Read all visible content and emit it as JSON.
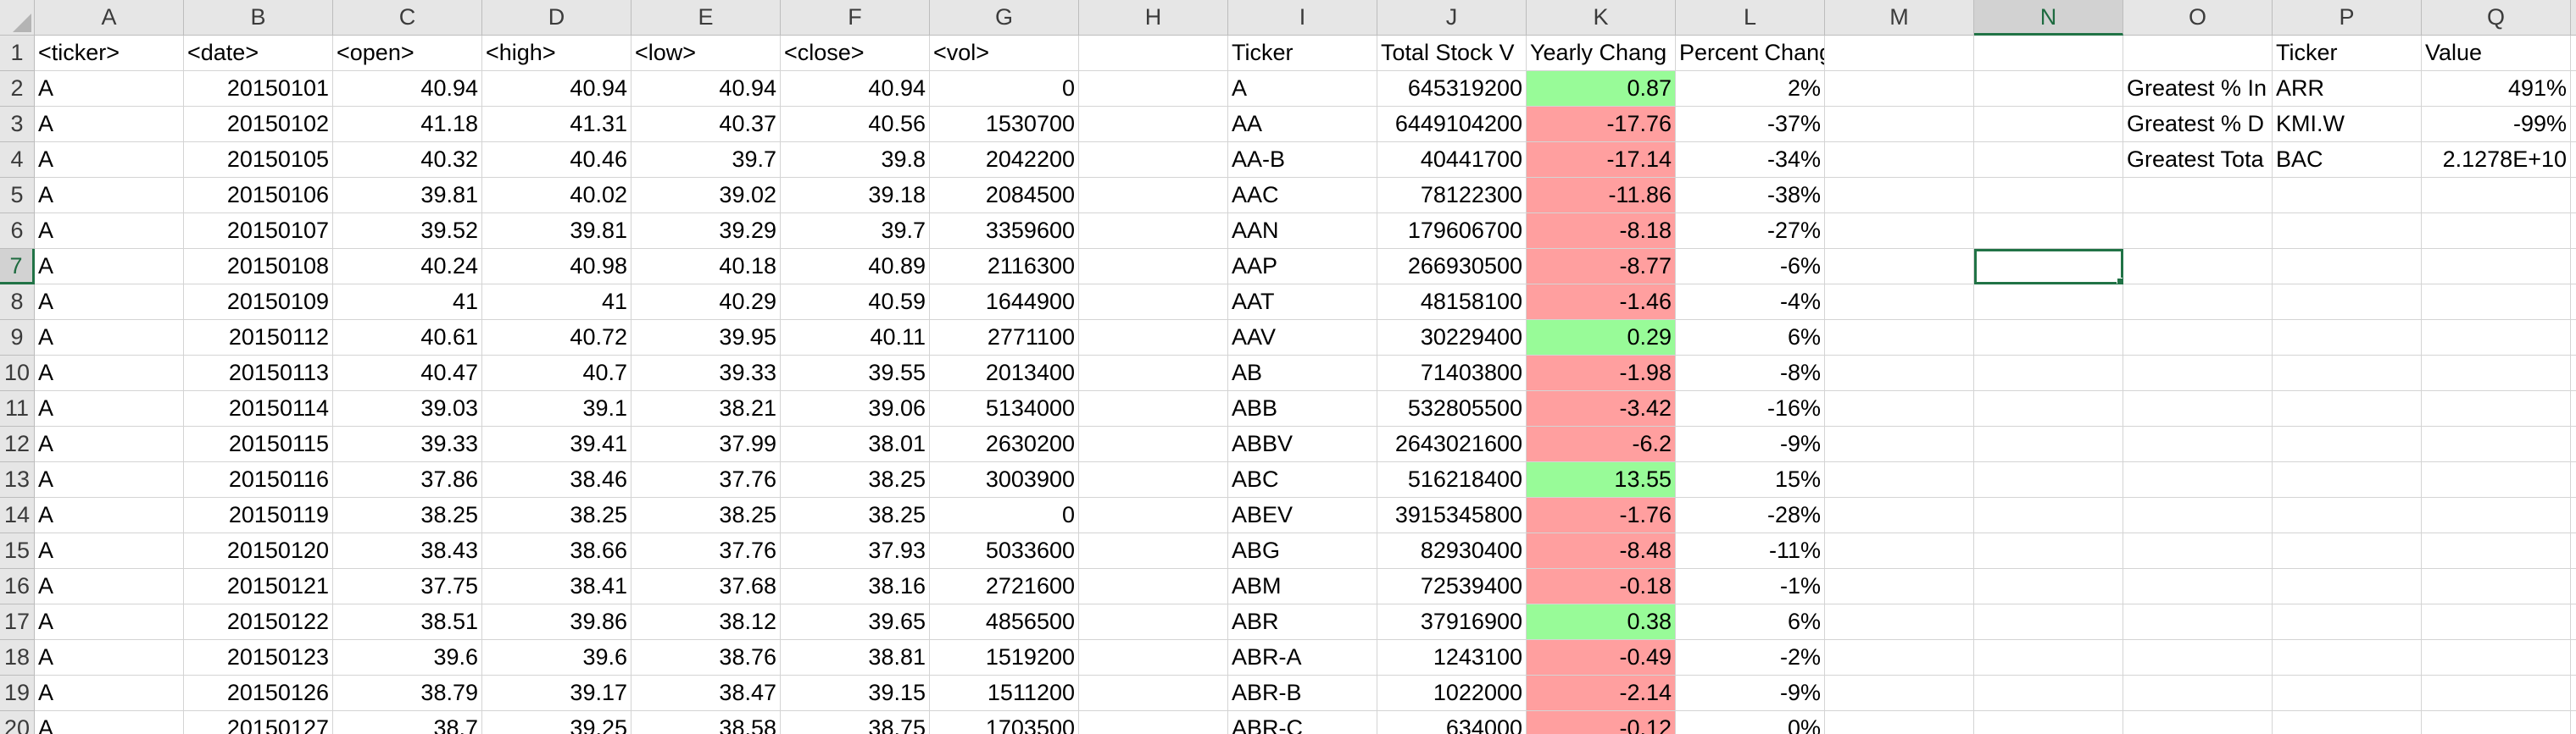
{
  "columns": [
    "A",
    "B",
    "C",
    "D",
    "E",
    "F",
    "G",
    "H",
    "I",
    "J",
    "K",
    "L",
    "M",
    "N",
    "O",
    "P",
    "Q"
  ],
  "selected_column": "N",
  "selected_row": "7",
  "rows": [
    {
      "n": "1",
      "A": "<ticker>",
      "B": "<date>",
      "C": "<open>",
      "D": "<high>",
      "E": "<low>",
      "F": "<close>",
      "G": "<vol>",
      "H": "",
      "I": "Ticker",
      "J": "Total Stock V",
      "K": "Yearly Chang",
      "L": "Percent Change",
      "M": "",
      "N": "",
      "O": "",
      "P": "Ticker",
      "Q": "Value"
    },
    {
      "n": "2",
      "A": "A",
      "B": "20150101",
      "C": "40.94",
      "D": "40.94",
      "E": "40.94",
      "F": "40.94",
      "G": "0",
      "H": "",
      "I": "A",
      "J": "645319200",
      "K": "0.87",
      "L": "2%",
      "M": "",
      "N": "",
      "O": "Greatest % In",
      "P": "ARR",
      "Q": "491%"
    },
    {
      "n": "3",
      "A": "A",
      "B": "20150102",
      "C": "41.18",
      "D": "41.31",
      "E": "40.37",
      "F": "40.56",
      "G": "1530700",
      "H": "",
      "I": "AA",
      "J": "6449104200",
      "K": "-17.76",
      "L": "-37%",
      "M": "",
      "N": "",
      "O": "Greatest % D",
      "P": "KMI.W",
      "Q": "-99%"
    },
    {
      "n": "4",
      "A": "A",
      "B": "20150105",
      "C": "40.32",
      "D": "40.46",
      "E": "39.7",
      "F": "39.8",
      "G": "2042200",
      "H": "",
      "I": "AA-B",
      "J": "40441700",
      "K": "-17.14",
      "L": "-34%",
      "M": "",
      "N": "",
      "O": "Greatest Tota",
      "P": "BAC",
      "Q": "2.1278E+10"
    },
    {
      "n": "5",
      "A": "A",
      "B": "20150106",
      "C": "39.81",
      "D": "40.02",
      "E": "39.02",
      "F": "39.18",
      "G": "2084500",
      "H": "",
      "I": "AAC",
      "J": "78122300",
      "K": "-11.86",
      "L": "-38%",
      "M": "",
      "N": "",
      "O": "",
      "P": "",
      "Q": ""
    },
    {
      "n": "6",
      "A": "A",
      "B": "20150107",
      "C": "39.52",
      "D": "39.81",
      "E": "39.29",
      "F": "39.7",
      "G": "3359600",
      "H": "",
      "I": "AAN",
      "J": "179606700",
      "K": "-8.18",
      "L": "-27%",
      "M": "",
      "N": "",
      "O": "",
      "P": "",
      "Q": ""
    },
    {
      "n": "7",
      "A": "A",
      "B": "20150108",
      "C": "40.24",
      "D": "40.98",
      "E": "40.18",
      "F": "40.89",
      "G": "2116300",
      "H": "",
      "I": "AAP",
      "J": "266930500",
      "K": "-8.77",
      "L": "-6%",
      "M": "",
      "N": "",
      "O": "",
      "P": "",
      "Q": ""
    },
    {
      "n": "8",
      "A": "A",
      "B": "20150109",
      "C": "41",
      "D": "41",
      "E": "40.29",
      "F": "40.59",
      "G": "1644900",
      "H": "",
      "I": "AAT",
      "J": "48158100",
      "K": "-1.46",
      "L": "-4%",
      "M": "",
      "N": "",
      "O": "",
      "P": "",
      "Q": ""
    },
    {
      "n": "9",
      "A": "A",
      "B": "20150112",
      "C": "40.61",
      "D": "40.72",
      "E": "39.95",
      "F": "40.11",
      "G": "2771100",
      "H": "",
      "I": "AAV",
      "J": "30229400",
      "K": "0.29",
      "L": "6%",
      "M": "",
      "N": "",
      "O": "",
      "P": "",
      "Q": ""
    },
    {
      "n": "10",
      "A": "A",
      "B": "20150113",
      "C": "40.47",
      "D": "40.7",
      "E": "39.33",
      "F": "39.55",
      "G": "2013400",
      "H": "",
      "I": "AB",
      "J": "71403800",
      "K": "-1.98",
      "L": "-8%",
      "M": "",
      "N": "",
      "O": "",
      "P": "",
      "Q": ""
    },
    {
      "n": "11",
      "A": "A",
      "B": "20150114",
      "C": "39.03",
      "D": "39.1",
      "E": "38.21",
      "F": "39.06",
      "G": "5134000",
      "H": "",
      "I": "ABB",
      "J": "532805500",
      "K": "-3.42",
      "L": "-16%",
      "M": "",
      "N": "",
      "O": "",
      "P": "",
      "Q": ""
    },
    {
      "n": "12",
      "A": "A",
      "B": "20150115",
      "C": "39.33",
      "D": "39.41",
      "E": "37.99",
      "F": "38.01",
      "G": "2630200",
      "H": "",
      "I": "ABBV",
      "J": "2643021600",
      "K": "-6.2",
      "L": "-9%",
      "M": "",
      "N": "",
      "O": "",
      "P": "",
      "Q": ""
    },
    {
      "n": "13",
      "A": "A",
      "B": "20150116",
      "C": "37.86",
      "D": "38.46",
      "E": "37.76",
      "F": "38.25",
      "G": "3003900",
      "H": "",
      "I": "ABC",
      "J": "516218400",
      "K": "13.55",
      "L": "15%",
      "M": "",
      "N": "",
      "O": "",
      "P": "",
      "Q": ""
    },
    {
      "n": "14",
      "A": "A",
      "B": "20150119",
      "C": "38.25",
      "D": "38.25",
      "E": "38.25",
      "F": "38.25",
      "G": "0",
      "H": "",
      "I": "ABEV",
      "J": "3915345800",
      "K": "-1.76",
      "L": "-28%",
      "M": "",
      "N": "",
      "O": "",
      "P": "",
      "Q": ""
    },
    {
      "n": "15",
      "A": "A",
      "B": "20150120",
      "C": "38.43",
      "D": "38.66",
      "E": "37.76",
      "F": "37.93",
      "G": "5033600",
      "H": "",
      "I": "ABG",
      "J": "82930400",
      "K": "-8.48",
      "L": "-11%",
      "M": "",
      "N": "",
      "O": "",
      "P": "",
      "Q": ""
    },
    {
      "n": "16",
      "A": "A",
      "B": "20150121",
      "C": "37.75",
      "D": "38.41",
      "E": "37.68",
      "F": "38.16",
      "G": "2721600",
      "H": "",
      "I": "ABM",
      "J": "72539400",
      "K": "-0.18",
      "L": "-1%",
      "M": "",
      "N": "",
      "O": "",
      "P": "",
      "Q": ""
    },
    {
      "n": "17",
      "A": "A",
      "B": "20150122",
      "C": "38.51",
      "D": "39.86",
      "E": "38.12",
      "F": "39.65",
      "G": "4856500",
      "H": "",
      "I": "ABR",
      "J": "37916900",
      "K": "0.38",
      "L": "6%",
      "M": "",
      "N": "",
      "O": "",
      "P": "",
      "Q": ""
    },
    {
      "n": "18",
      "A": "A",
      "B": "20150123",
      "C": "39.6",
      "D": "39.6",
      "E": "38.76",
      "F": "38.81",
      "G": "1519200",
      "H": "",
      "I": "ABR-A",
      "J": "1243100",
      "K": "-0.49",
      "L": "-2%",
      "M": "",
      "N": "",
      "O": "",
      "P": "",
      "Q": ""
    },
    {
      "n": "19",
      "A": "A",
      "B": "20150126",
      "C": "38.79",
      "D": "39.17",
      "E": "38.47",
      "F": "39.15",
      "G": "1511200",
      "H": "",
      "I": "ABR-B",
      "J": "1022000",
      "K": "-2.14",
      "L": "-9%",
      "M": "",
      "N": "",
      "O": "",
      "P": "",
      "Q": ""
    },
    {
      "n": "20",
      "A": "A",
      "B": "20150127",
      "C": "38.7",
      "D": "39.25",
      "E": "38.58",
      "F": "38.75",
      "G": "1703500",
      "H": "",
      "I": "ABR-C",
      "J": "634000",
      "K": "-0.12",
      "L": "0%",
      "M": "",
      "N": "",
      "O": "",
      "P": "",
      "Q": ""
    }
  ],
  "colors": {
    "positive_fill": "#98fb98",
    "negative_fill": "#ff9f9f",
    "selection": "#217346"
  }
}
